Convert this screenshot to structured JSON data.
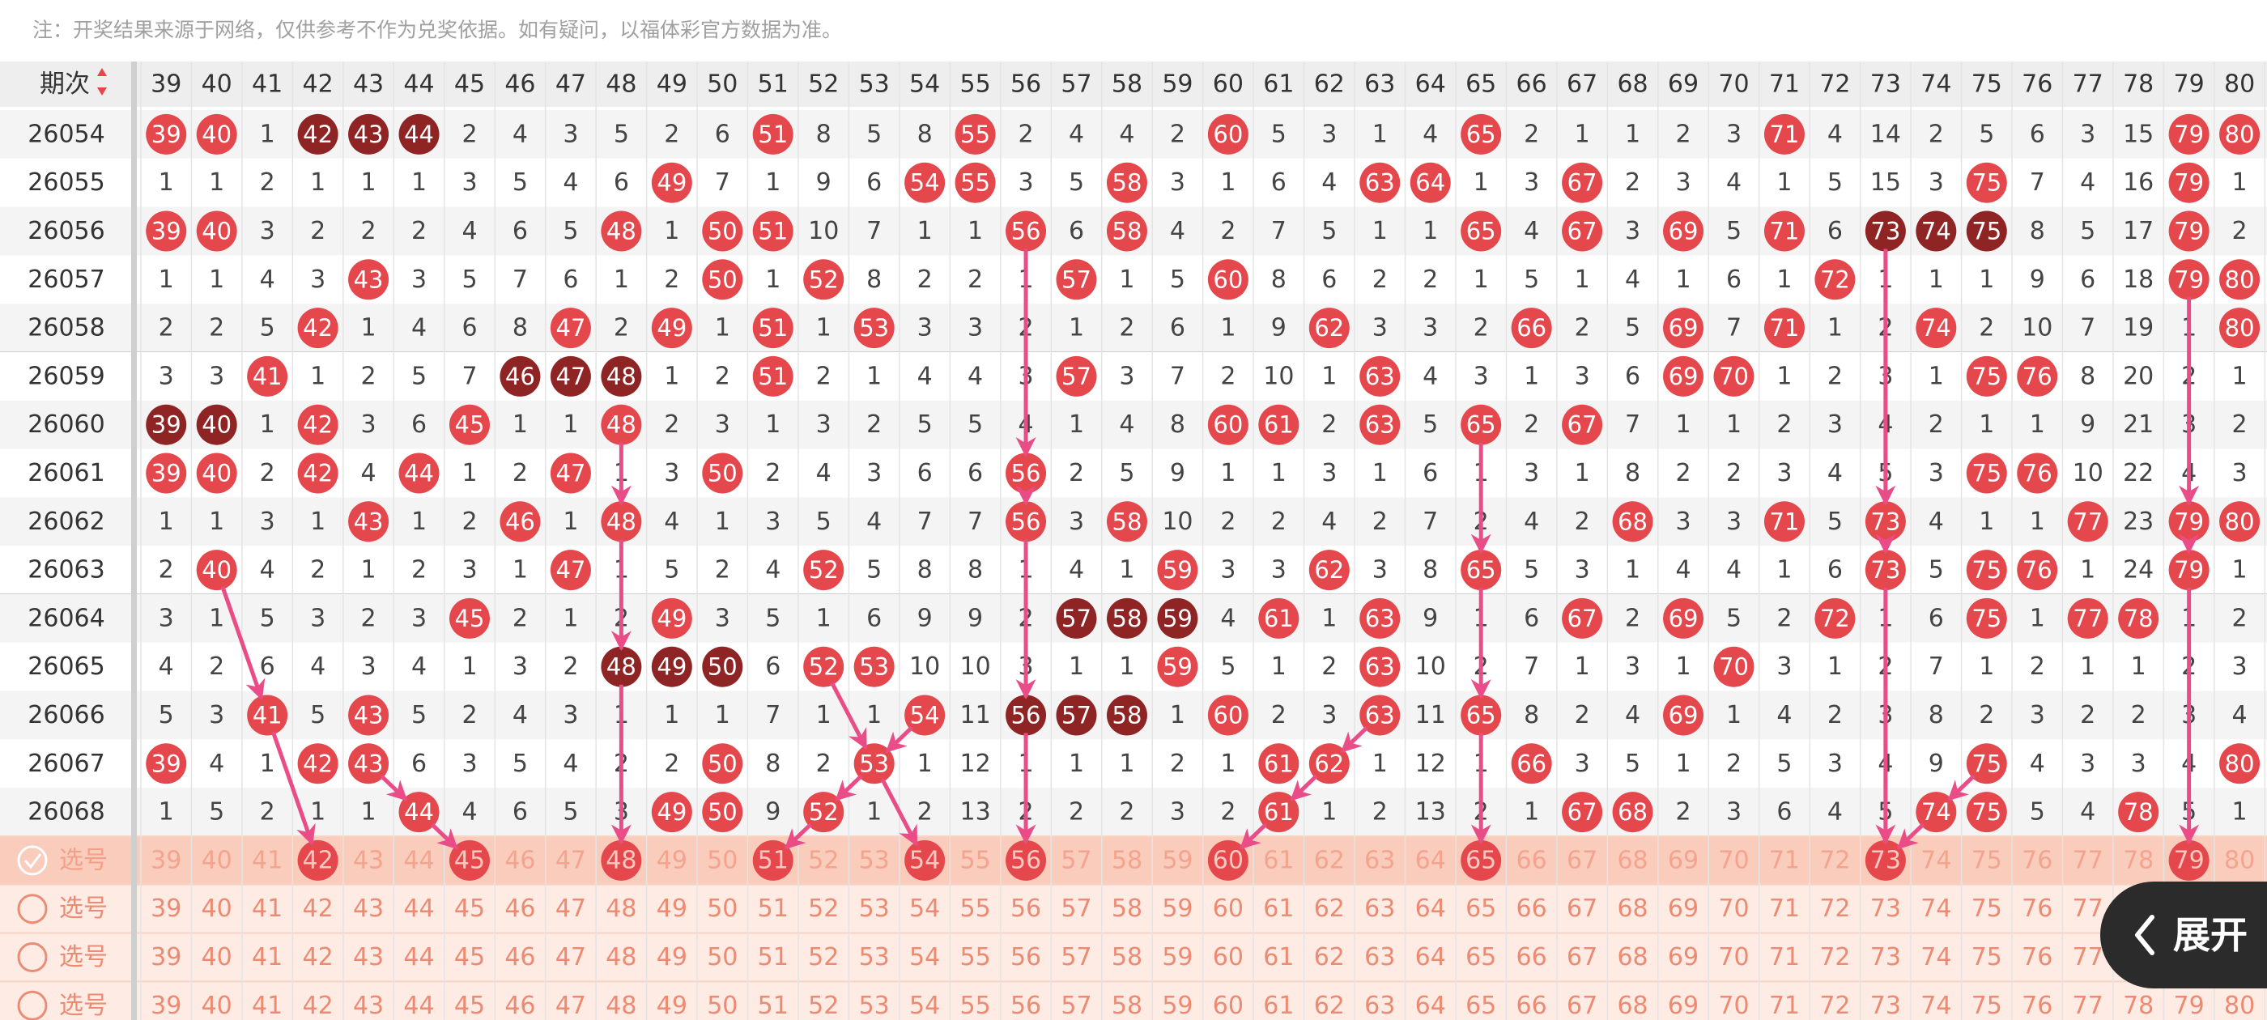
{
  "notice": "注：开奖结果来源于网络，仅供参考不作为兑奖依据。如有疑问，以福体彩官方数据为准。",
  "header": {
    "period_label": "期次",
    "numbers": [
      39,
      40,
      41,
      42,
      43,
      44,
      45,
      46,
      47,
      48,
      49,
      50,
      51,
      52,
      53,
      54,
      55,
      56,
      57,
      58,
      59,
      60,
      61,
      62,
      63,
      64,
      65,
      66,
      67,
      68,
      69,
      70,
      71,
      72,
      73,
      74,
      75,
      76,
      77,
      78,
      79,
      80
    ]
  },
  "rows": [
    {
      "period": "26054",
      "cells": [
        {
          "value": 39,
          "mark": "hit"
        },
        {
          "value": 40,
          "mark": "hit"
        },
        1,
        {
          "value": 42,
          "mark": "streak"
        },
        {
          "value": 43,
          "mark": "streak"
        },
        {
          "value": 44,
          "mark": "streak"
        },
        2,
        4,
        3,
        5,
        2,
        6,
        {
          "value": 51,
          "mark": "hit"
        },
        8,
        5,
        8,
        {
          "value": 55,
          "mark": "hit"
        },
        2,
        4,
        4,
        2,
        {
          "value": 60,
          "mark": "hit"
        },
        5,
        3,
        1,
        4,
        {
          "value": 65,
          "mark": "hit"
        },
        2,
        1,
        1,
        2,
        3,
        {
          "value": 71,
          "mark": "hit"
        },
        4,
        14,
        2,
        5,
        6,
        3,
        15,
        {
          "value": 79,
          "mark": "hit"
        },
        {
          "value": 80,
          "mark": "hit"
        }
      ]
    },
    {
      "period": "26055",
      "cells": [
        1,
        1,
        2,
        1,
        1,
        1,
        3,
        5,
        4,
        6,
        {
          "value": 49,
          "mark": "hit"
        },
        7,
        1,
        9,
        6,
        {
          "value": 54,
          "mark": "hit"
        },
        {
          "value": 55,
          "mark": "hit"
        },
        3,
        5,
        {
          "value": 58,
          "mark": "hit"
        },
        3,
        1,
        6,
        4,
        {
          "value": 63,
          "mark": "hit"
        },
        {
          "value": 64,
          "mark": "hit"
        },
        1,
        3,
        {
          "value": 67,
          "mark": "hit"
        },
        2,
        3,
        4,
        1,
        5,
        15,
        3,
        {
          "value": 75,
          "mark": "hit"
        },
        7,
        4,
        16,
        {
          "value": 79,
          "mark": "hit"
        },
        1
      ]
    },
    {
      "period": "26056",
      "cells": [
        {
          "value": 39,
          "mark": "hit"
        },
        {
          "value": 40,
          "mark": "hit"
        },
        3,
        2,
        2,
        2,
        4,
        6,
        5,
        {
          "value": 48,
          "mark": "hit"
        },
        1,
        {
          "value": 50,
          "mark": "hit"
        },
        {
          "value": 51,
          "mark": "hit"
        },
        10,
        7,
        1,
        1,
        {
          "value": 56,
          "mark": "hit"
        },
        6,
        {
          "value": 58,
          "mark": "hit"
        },
        4,
        2,
        7,
        5,
        1,
        1,
        {
          "value": 65,
          "mark": "hit"
        },
        4,
        {
          "value": 67,
          "mark": "hit"
        },
        3,
        {
          "value": 69,
          "mark": "hit"
        },
        5,
        {
          "value": 71,
          "mark": "hit"
        },
        6,
        {
          "value": 73,
          "mark": "streak"
        },
        {
          "value": 74,
          "mark": "streak"
        },
        {
          "value": 75,
          "mark": "streak"
        },
        8,
        5,
        17,
        {
          "value": 79,
          "mark": "hit"
        },
        2
      ]
    },
    {
      "period": "26057",
      "cells": [
        1,
        1,
        4,
        3,
        {
          "value": 43,
          "mark": "hit"
        },
        3,
        5,
        7,
        6,
        1,
        2,
        {
          "value": 50,
          "mark": "hit"
        },
        1,
        {
          "value": 52,
          "mark": "hit"
        },
        8,
        2,
        2,
        1,
        {
          "value": 57,
          "mark": "hit"
        },
        1,
        5,
        {
          "value": 60,
          "mark": "hit"
        },
        8,
        6,
        2,
        2,
        1,
        5,
        1,
        4,
        1,
        6,
        1,
        {
          "value": 72,
          "mark": "hit"
        },
        1,
        1,
        1,
        9,
        6,
        18,
        {
          "value": 79,
          "mark": "hit"
        },
        {
          "value": 80,
          "mark": "hit"
        }
      ]
    },
    {
      "period": "26058",
      "cells": [
        2,
        2,
        5,
        {
          "value": 42,
          "mark": "hit"
        },
        1,
        4,
        6,
        8,
        {
          "value": 47,
          "mark": "hit"
        },
        2,
        {
          "value": 49,
          "mark": "hit"
        },
        1,
        {
          "value": 51,
          "mark": "hit"
        },
        1,
        {
          "value": 53,
          "mark": "hit"
        },
        3,
        3,
        2,
        1,
        2,
        6,
        1,
        9,
        {
          "value": 62,
          "mark": "hit"
        },
        3,
        3,
        2,
        {
          "value": 66,
          "mark": "hit"
        },
        2,
        5,
        {
          "value": 69,
          "mark": "hit"
        },
        7,
        {
          "value": 71,
          "mark": "hit"
        },
        1,
        2,
        {
          "value": 74,
          "mark": "hit"
        },
        2,
        10,
        7,
        19,
        1,
        {
          "value": 80,
          "mark": "hit"
        }
      ]
    },
    {
      "period": "26059",
      "cells": [
        3,
        3,
        {
          "value": 41,
          "mark": "hit"
        },
        1,
        2,
        5,
        7,
        {
          "value": 46,
          "mark": "streak"
        },
        {
          "value": 47,
          "mark": "streak"
        },
        {
          "value": 48,
          "mark": "streak"
        },
        1,
        2,
        {
          "value": 51,
          "mark": "hit"
        },
        2,
        1,
        4,
        4,
        3,
        {
          "value": 57,
          "mark": "hit"
        },
        3,
        7,
        2,
        10,
        1,
        {
          "value": 63,
          "mark": "hit"
        },
        4,
        3,
        1,
        3,
        6,
        {
          "value": 69,
          "mark": "hit"
        },
        {
          "value": 70,
          "mark": "hit"
        },
        1,
        2,
        3,
        1,
        {
          "value": 75,
          "mark": "hit"
        },
        {
          "value": 76,
          "mark": "hit"
        },
        8,
        20,
        2,
        1
      ]
    },
    {
      "period": "26060",
      "cells": [
        {
          "value": 39,
          "mark": "streak"
        },
        {
          "value": 40,
          "mark": "streak"
        },
        1,
        {
          "value": 42,
          "mark": "hit"
        },
        3,
        6,
        {
          "value": 45,
          "mark": "hit"
        },
        1,
        1,
        {
          "value": 48,
          "mark": "hit"
        },
        2,
        3,
        1,
        3,
        2,
        5,
        5,
        4,
        1,
        4,
        8,
        {
          "value": 60,
          "mark": "hit"
        },
        {
          "value": 61,
          "mark": "hit"
        },
        2,
        {
          "value": 63,
          "mark": "hit"
        },
        5,
        {
          "value": 65,
          "mark": "hit"
        },
        2,
        {
          "value": 67,
          "mark": "hit"
        },
        7,
        1,
        1,
        2,
        3,
        4,
        2,
        1,
        1,
        9,
        21,
        3,
        2
      ]
    },
    {
      "period": "26061",
      "cells": [
        {
          "value": 39,
          "mark": "hit"
        },
        {
          "value": 40,
          "mark": "hit"
        },
        2,
        {
          "value": 42,
          "mark": "hit"
        },
        4,
        {
          "value": 44,
          "mark": "hit"
        },
        1,
        2,
        {
          "value": 47,
          "mark": "hit"
        },
        1,
        3,
        {
          "value": 50,
          "mark": "hit"
        },
        2,
        4,
        3,
        6,
        6,
        {
          "value": 56,
          "mark": "hit"
        },
        2,
        5,
        9,
        1,
        1,
        3,
        1,
        6,
        1,
        3,
        1,
        8,
        2,
        2,
        3,
        4,
        5,
        3,
        {
          "value": 75,
          "mark": "hit"
        },
        {
          "value": 76,
          "mark": "hit"
        },
        10,
        22,
        4,
        3
      ]
    },
    {
      "period": "26062",
      "cells": [
        1,
        1,
        3,
        1,
        {
          "value": 43,
          "mark": "hit"
        },
        1,
        2,
        {
          "value": 46,
          "mark": "hit"
        },
        1,
        {
          "value": 48,
          "mark": "hit"
        },
        4,
        1,
        3,
        5,
        4,
        7,
        7,
        {
          "value": 56,
          "mark": "hit"
        },
        3,
        {
          "value": 58,
          "mark": "hit"
        },
        10,
        2,
        2,
        4,
        2,
        7,
        2,
        4,
        2,
        {
          "value": 68,
          "mark": "hit"
        },
        3,
        3,
        {
          "value": 71,
          "mark": "hit"
        },
        5,
        {
          "value": 73,
          "mark": "hit"
        },
        4,
        1,
        1,
        {
          "value": 77,
          "mark": "hit"
        },
        23,
        {
          "value": 79,
          "mark": "hit"
        },
        {
          "value": 80,
          "mark": "hit"
        }
      ]
    },
    {
      "period": "26063",
      "cells": [
        2,
        {
          "value": 40,
          "mark": "hit"
        },
        4,
        2,
        1,
        2,
        3,
        1,
        {
          "value": 47,
          "mark": "hit"
        },
        1,
        5,
        2,
        4,
        {
          "value": 52,
          "mark": "hit"
        },
        5,
        8,
        8,
        1,
        4,
        1,
        {
          "value": 59,
          "mark": "hit"
        },
        3,
        3,
        {
          "value": 62,
          "mark": "hit"
        },
        3,
        8,
        {
          "value": 65,
          "mark": "hit"
        },
        5,
        3,
        1,
        4,
        4,
        1,
        6,
        {
          "value": 73,
          "mark": "hit"
        },
        5,
        {
          "value": 75,
          "mark": "hit"
        },
        {
          "value": 76,
          "mark": "hit"
        },
        1,
        24,
        {
          "value": 79,
          "mark": "hit"
        },
        1
      ]
    },
    {
      "period": "26064",
      "cells": [
        3,
        1,
        5,
        3,
        2,
        3,
        {
          "value": 45,
          "mark": "hit"
        },
        2,
        1,
        2,
        {
          "value": 49,
          "mark": "hit"
        },
        3,
        5,
        1,
        6,
        9,
        9,
        2,
        {
          "value": 57,
          "mark": "streak"
        },
        {
          "value": 58,
          "mark": "streak"
        },
        {
          "value": 59,
          "mark": "streak"
        },
        4,
        {
          "value": 61,
          "mark": "hit"
        },
        1,
        {
          "value": 63,
          "mark": "hit"
        },
        9,
        1,
        6,
        {
          "value": 67,
          "mark": "hit"
        },
        2,
        {
          "value": 69,
          "mark": "hit"
        },
        5,
        2,
        {
          "value": 72,
          "mark": "hit"
        },
        1,
        6,
        {
          "value": 75,
          "mark": "hit"
        },
        1,
        {
          "value": 77,
          "mark": "hit"
        },
        {
          "value": 78,
          "mark": "hit"
        },
        1,
        2
      ]
    },
    {
      "period": "26065",
      "cells": [
        4,
        2,
        6,
        4,
        3,
        4,
        1,
        3,
        2,
        {
          "value": 48,
          "mark": "streak"
        },
        {
          "value": 49,
          "mark": "streak"
        },
        {
          "value": 50,
          "mark": "streak"
        },
        6,
        {
          "value": 52,
          "mark": "hit"
        },
        {
          "value": 53,
          "mark": "hit"
        },
        10,
        10,
        3,
        1,
        1,
        {
          "value": 59,
          "mark": "hit"
        },
        5,
        1,
        2,
        {
          "value": 63,
          "mark": "hit"
        },
        10,
        2,
        7,
        1,
        3,
        1,
        {
          "value": 70,
          "mark": "hit"
        },
        3,
        1,
        2,
        7,
        1,
        2,
        1,
        1,
        2,
        3
      ]
    },
    {
      "period": "26066",
      "cells": [
        5,
        3,
        {
          "value": 41,
          "mark": "hit"
        },
        5,
        {
          "value": 43,
          "mark": "hit"
        },
        5,
        2,
        4,
        3,
        1,
        1,
        1,
        7,
        1,
        1,
        {
          "value": 54,
          "mark": "hit"
        },
        11,
        {
          "value": 56,
          "mark": "streak"
        },
        {
          "value": 57,
          "mark": "streak"
        },
        {
          "value": 58,
          "mark": "streak"
        },
        1,
        {
          "value": 60,
          "mark": "hit"
        },
        2,
        3,
        {
          "value": 63,
          "mark": "hit"
        },
        11,
        {
          "value": 65,
          "mark": "hit"
        },
        8,
        2,
        4,
        {
          "value": 69,
          "mark": "hit"
        },
        1,
        4,
        2,
        3,
        8,
        2,
        3,
        2,
        2,
        3,
        4
      ]
    },
    {
      "period": "26067",
      "cells": [
        {
          "value": 39,
          "mark": "hit"
        },
        4,
        1,
        {
          "value": 42,
          "mark": "hit"
        },
        {
          "value": 43,
          "mark": "hit"
        },
        6,
        3,
        5,
        4,
        2,
        2,
        {
          "value": 50,
          "mark": "hit"
        },
        8,
        2,
        {
          "value": 53,
          "mark": "hit"
        },
        1,
        12,
        1,
        1,
        1,
        2,
        1,
        {
          "value": 61,
          "mark": "hit"
        },
        {
          "value": 62,
          "mark": "hit"
        },
        1,
        12,
        1,
        {
          "value": 66,
          "mark": "hit"
        },
        3,
        5,
        1,
        2,
        5,
        3,
        4,
        9,
        {
          "value": 75,
          "mark": "hit"
        },
        4,
        3,
        3,
        4,
        {
          "value": 80,
          "mark": "hit"
        }
      ]
    },
    {
      "period": "26068",
      "cells": [
        1,
        5,
        2,
        1,
        1,
        {
          "value": 44,
          "mark": "hit"
        },
        4,
        6,
        5,
        3,
        {
          "value": 49,
          "mark": "hit"
        },
        {
          "value": 50,
          "mark": "hit"
        },
        9,
        {
          "value": 52,
          "mark": "hit"
        },
        1,
        2,
        13,
        2,
        2,
        2,
        3,
        2,
        {
          "value": 61,
          "mark": "hit"
        },
        1,
        2,
        13,
        2,
        1,
        {
          "value": 67,
          "mark": "hit"
        },
        {
          "value": 68,
          "mark": "hit"
        },
        2,
        3,
        6,
        4,
        5,
        {
          "value": 74,
          "mark": "hit"
        },
        {
          "value": 75,
          "mark": "hit"
        },
        5,
        4,
        {
          "value": 78,
          "mark": "hit"
        },
        5,
        1
      ]
    }
  ],
  "selections": [
    {
      "label": "选号",
      "checked": true,
      "picked": [
        42,
        45,
        48,
        51,
        54,
        56,
        60,
        65,
        73,
        79
      ]
    },
    {
      "label": "选号",
      "checked": false,
      "picked": []
    },
    {
      "label": "选号",
      "checked": false,
      "picked": []
    },
    {
      "label": "选号",
      "checked": false,
      "picked": []
    }
  ],
  "expand_button": "展开"
}
